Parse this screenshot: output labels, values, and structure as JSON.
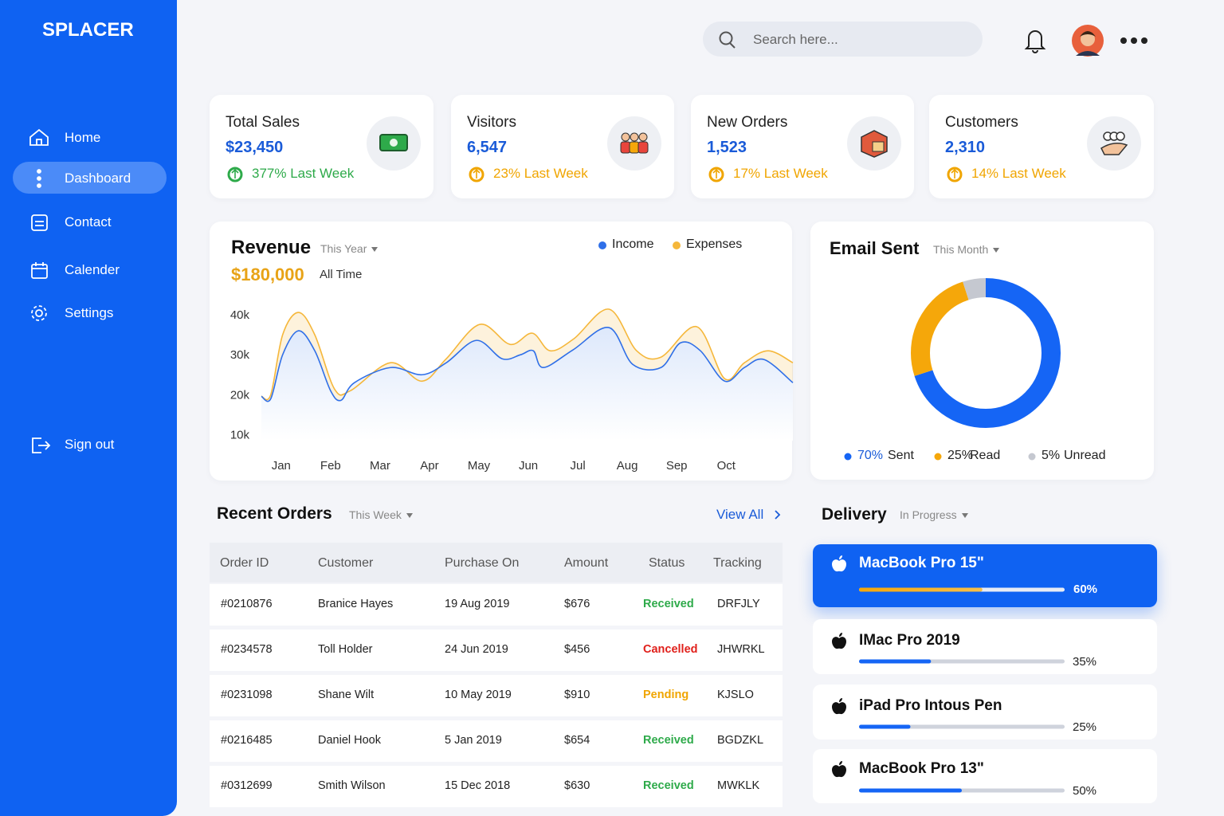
{
  "sidebar": {
    "brand": "SPLACER",
    "nav": [
      "Home",
      "Dashboard",
      "Contact",
      "Calender",
      "Settings"
    ],
    "sign_out": "Sign out"
  },
  "header": {
    "search_placeholder": "Search here..."
  },
  "stats": [
    {
      "title": "Total Sales",
      "value": "$23,450",
      "change": "377% Last Week",
      "change_color": "#2eaa4a"
    },
    {
      "title": "Visitors",
      "value": "6,547",
      "change": "23% Last Week",
      "change_color": "#f0a500"
    },
    {
      "title": "New Orders",
      "value": "1,523",
      "change": "17% Last Week",
      "change_color": "#f0a500"
    },
    {
      "title": "Customers",
      "value": "2,310",
      "change": "14% Last Week",
      "change_color": "#f0a500"
    }
  ],
  "chart_data": [
    {
      "type": "line",
      "title": "Revenue",
      "period": "This Year",
      "total": "$180,000",
      "total_label": "All Time",
      "smooth": true,
      "xlim": [
        0.6,
        11.35
      ],
      "xticks": [
        {
          "value": 1,
          "label": "Jan"
        },
        {
          "value": 2,
          "label": "Feb"
        },
        {
          "value": 3,
          "label": "Mar"
        },
        {
          "value": 4,
          "label": "Apr"
        },
        {
          "value": 5,
          "label": "May"
        },
        {
          "value": 6,
          "label": "Jun"
        },
        {
          "value": 7,
          "label": "Jul"
        },
        {
          "value": 8,
          "label": "Aug"
        },
        {
          "value": 9,
          "label": "Sep"
        },
        {
          "value": 10,
          "label": "Oct"
        }
      ],
      "ylim": [
        8500,
        43000
      ],
      "yticks": [
        {
          "value": 10000,
          "label": "10k"
        },
        {
          "value": 20000,
          "label": "20k"
        },
        {
          "value": 30000,
          "label": "30k"
        },
        {
          "value": 40000,
          "label": "40k"
        }
      ],
      "series": [
        {
          "name": "Income",
          "color": "#2f6fe8",
          "x": [
            0.6,
            0.79,
            1.03,
            1.35,
            1.68,
            2.0,
            2.21,
            2.48,
            3.21,
            3.85,
            4.34,
            4.95,
            5.47,
            5.84,
            6.1,
            6.3,
            6.9,
            7.63,
            8.11,
            8.68,
            9.08,
            9.48,
            9.97,
            10.37,
            10.77,
            11.35
          ],
          "values": [
            19600,
            19000,
            30000,
            36000,
            31000,
            21000,
            18600,
            23000,
            26800,
            25000,
            28000,
            33600,
            29000,
            30000,
            31000,
            26800,
            31200,
            36800,
            27600,
            26800,
            33000,
            31000,
            23400,
            26800,
            28800,
            23000
          ]
        },
        {
          "name": "Expenses",
          "color": "#f5b73b",
          "x": [
            0.6,
            0.79,
            1.03,
            1.35,
            1.68,
            2.08,
            2.4,
            3.21,
            3.85,
            4.34,
            5.02,
            5.63,
            6.08,
            6.44,
            6.92,
            7.63,
            8.19,
            8.68,
            9.41,
            9.97,
            10.37,
            10.85,
            11.35
          ],
          "values": [
            19600,
            20000,
            35000,
            40600,
            35000,
            21400,
            21000,
            28000,
            23400,
            29000,
            37600,
            32600,
            35400,
            31000,
            34000,
            41400,
            31000,
            29400,
            37000,
            24000,
            28000,
            31000,
            28000
          ]
        }
      ]
    },
    {
      "type": "pie",
      "donut": true,
      "title": "Email Sent",
      "period": "This Month",
      "categories": [
        "Sent",
        "Read",
        "Unread"
      ],
      "values": [
        70,
        25,
        5
      ],
      "value_labels": [
        "70%",
        "25%",
        "5%"
      ],
      "colors": [
        "#1565f5",
        "#f5a70a",
        "#c5c8d0"
      ]
    }
  ],
  "orders": {
    "title": "Recent Orders",
    "period": "This Week",
    "view_all": "View All",
    "columns": [
      "Order ID",
      "Customer",
      "Purchase On",
      "Amount",
      "Status",
      "Tracking"
    ],
    "rows": [
      [
        "#0210876",
        "Branice Hayes",
        "19 Aug 2019",
        "$676",
        "Received",
        "DRFJLY"
      ],
      [
        "#0234578",
        "Toll Holder",
        "24 Jun 2019",
        "$456",
        "Cancelled",
        "JHWRKL"
      ],
      [
        "#0231098",
        "Shane Wilt",
        "10 May 2019",
        "$910",
        "Pending",
        "KJSLO"
      ],
      [
        "#0216485",
        "Daniel Hook",
        "5 Jan 2019",
        "$654",
        "Received",
        "BGDZKL"
      ],
      [
        "#0312699",
        "Smith Wilson",
        "15 Dec 2018",
        "$630",
        "Received",
        "MWKLK"
      ]
    ],
    "status_colors": [
      "#2eaa4a",
      "#e0201b",
      "#f0a500",
      "#2eaa4a",
      "#2eaa4a"
    ]
  },
  "delivery": {
    "title": "Delivery",
    "filter": "In Progress",
    "items": [
      {
        "name": "MacBook Pro 15\"",
        "progress": 60,
        "progress_label": "60%"
      },
      {
        "name": "IMac Pro 2019",
        "progress": 35,
        "progress_label": "35%"
      },
      {
        "name": "iPad Pro Intous Pen",
        "progress": 25,
        "progress_label": "25%"
      },
      {
        "name": "MacBook Pro 13\"",
        "progress": 50,
        "progress_label": "50%"
      }
    ]
  }
}
